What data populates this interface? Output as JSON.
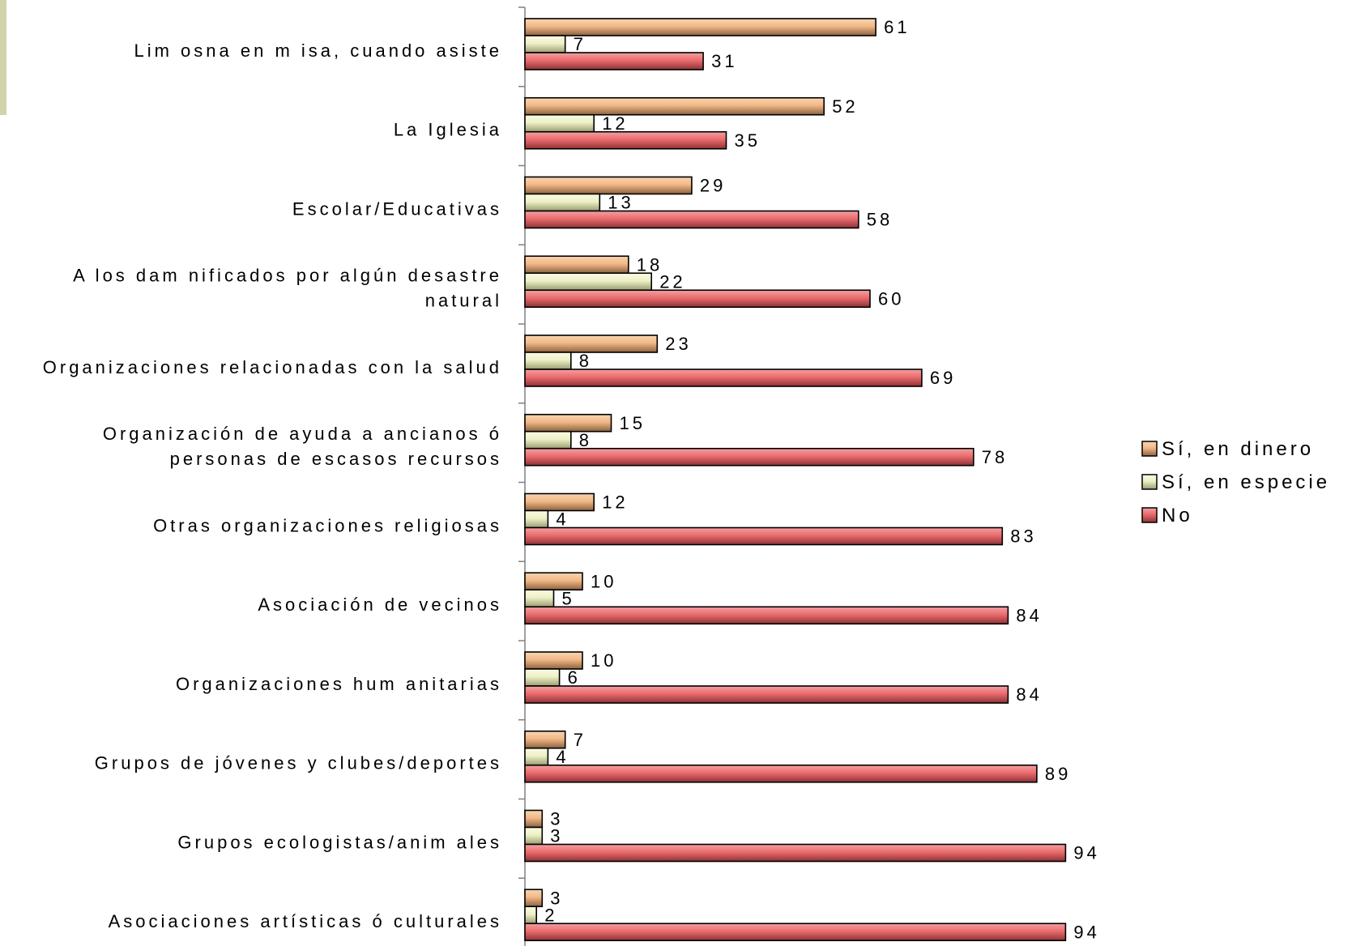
{
  "chart_data": {
    "type": "bar",
    "orientation": "horizontal",
    "title": "",
    "xlabel": "",
    "ylabel": "",
    "xlim": [
      0,
      100
    ],
    "grid": false,
    "legend_position": "right",
    "categories": [
      [
        "Lim osna en m isa, cuando asiste"
      ],
      [
        "La Iglesia"
      ],
      [
        "Escolar/Educativas"
      ],
      [
        "A los dam nificados por algún desastre",
        "natural"
      ],
      [
        "Organizaciones relacionadas con la salud"
      ],
      [
        "Organización de ayuda a ancianos ó",
        "personas de escasos recursos"
      ],
      [
        "Otras organizaciones religiosas"
      ],
      [
        "Asociación de vecinos"
      ],
      [
        "Organizaciones hum anitarias"
      ],
      [
        "Grupos de jóvenes y clubes/deportes"
      ],
      [
        "Grupos ecologistas/anim ales"
      ],
      [
        "Asociaciones artísticas ó culturales"
      ]
    ],
    "series": [
      {
        "name": "Sí, en dinero",
        "color": "#f2b886",
        "values": [
          61,
          52,
          29,
          18,
          23,
          15,
          12,
          10,
          10,
          7,
          3,
          3
        ]
      },
      {
        "name": "Sí, en especie",
        "color": "#eef0c6",
        "values": [
          7,
          12,
          13,
          22,
          8,
          8,
          4,
          5,
          6,
          4,
          3,
          2
        ]
      },
      {
        "name": "No",
        "color": "#ea6c6e",
        "values": [
          31,
          35,
          58,
          60,
          69,
          78,
          83,
          84,
          84,
          89,
          94,
          94
        ]
      }
    ]
  }
}
